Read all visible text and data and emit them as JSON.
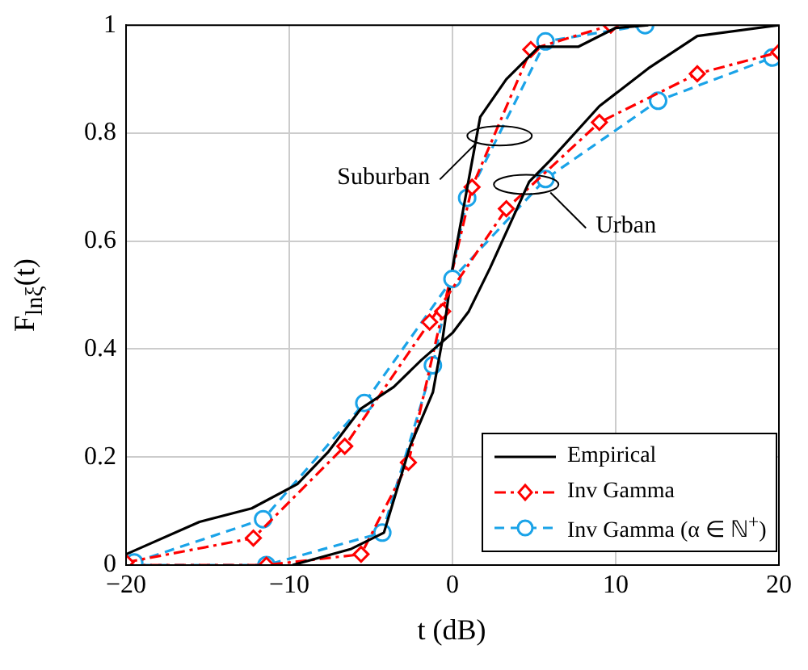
{
  "chart_data": {
    "type": "line",
    "xlabel": "t (dB)",
    "ylabel": "F$_{lnξ}$(t)",
    "xlim": [
      -20,
      20
    ],
    "xticks": [
      {
        "value": -20,
        "label": "−20"
      },
      {
        "value": -10,
        "label": "−10"
      },
      0,
      10,
      20
    ],
    "ylim": [
      0,
      1
    ],
    "yticks": [
      0,
      0.2,
      0.4,
      0.6,
      0.8,
      1
    ],
    "grid": true,
    "legend": "bottom right",
    "series": [
      {
        "name": "Empirical",
        "color": "#000000",
        "marker": "none",
        "line_style": "solid",
        "x": [
          -20,
          -15.5,
          -12.3,
          -9.5,
          -7.6,
          -5.6,
          -3.6,
          -1.9,
          0,
          1,
          2.3,
          4.7,
          6,
          9,
          12,
          15,
          20
        ],
        "values": [
          0.02,
          0.08,
          0.105,
          0.15,
          0.21,
          0.29,
          0.33,
          0.38,
          0.43,
          0.47,
          0.55,
          0.71,
          0.75,
          0.85,
          0.92,
          0.98,
          1
        ]
      },
      {
        "name": "Inv Gamma",
        "color": "#ff0000",
        "marker": "diamond",
        "line_style": "dashdot",
        "x": [
          -20,
          -12.2,
          -6.6,
          -1.4,
          3.3,
          9,
          15,
          20
        ],
        "values": [
          0.005,
          0.05,
          0.22,
          0.45,
          0.66,
          0.82,
          0.91,
          0.95
        ]
      },
      {
        "name": "Inv Gamma (α ∈ ℕ$^{+}$)",
        "color": "#1aa3e8",
        "marker": "circle",
        "line_style": "dashed",
        "x": [
          -19.5,
          -11.6,
          -5.4,
          0,
          5.7,
          12.6,
          19.6
        ],
        "values": [
          0.005,
          0.085,
          0.3,
          0.53,
          0.715,
          0.86,
          0.94
        ]
      },
      {
        "color": "#000000",
        "marker": "none",
        "line_style": "solid",
        "x": [
          -9.8,
          -6.2,
          -4.2,
          -3.6,
          -2.6,
          -1.2,
          -0.6,
          0,
          1.7,
          3.3,
          5.3,
          7.7,
          10,
          12
        ],
        "values": [
          0,
          0.03,
          0.06,
          0.12,
          0.22,
          0.32,
          0.42,
          0.55,
          0.83,
          0.9,
          0.96,
          0.96,
          0.995,
          1
        ]
      },
      {
        "color": "#ff0000",
        "marker": "diamond",
        "line_style": "dashdot",
        "x": [
          -20,
          -11.4,
          -5.6,
          -2.7,
          -0.6,
          1.2,
          4.8,
          9.7
        ],
        "values": [
          0,
          0,
          0.02,
          0.19,
          0.47,
          0.7,
          0.955,
          1
        ]
      },
      {
        "color": "#1aa3e8",
        "marker": "circle",
        "line_style": "dashed",
        "x": [
          -20,
          -11.4,
          -4.3,
          -1.2,
          0.9,
          5.7,
          11.8
        ],
        "values": [
          0,
          0,
          0.06,
          0.37,
          0.68,
          0.97,
          1
        ]
      }
    ],
    "annotations": [
      {
        "text": "Suburban",
        "x": 1.4,
        "y": 0.78
      },
      {
        "text": "Urban",
        "x": 6,
        "y": 0.69
      }
    ]
  }
}
